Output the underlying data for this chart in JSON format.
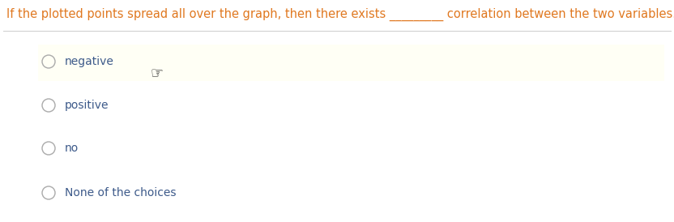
{
  "question_text": "If the plotted points spread all over the graph, then there exists _________ correlation between the two variables.",
  "question_color": "#e07820",
  "question_fontsize": 10.5,
  "separator_color": "#cccccc",
  "options": [
    "negative",
    "positive",
    "no",
    "None of the choices"
  ],
  "option_color": "#3d5a8a",
  "option_fontsize": 10,
  "highlight_bg": "#fffff0",
  "circle_color": "#aaaaaa",
  "bg_color": "#ffffff",
  "fig_width": 8.32,
  "fig_height": 2.74,
  "dpi": 100
}
